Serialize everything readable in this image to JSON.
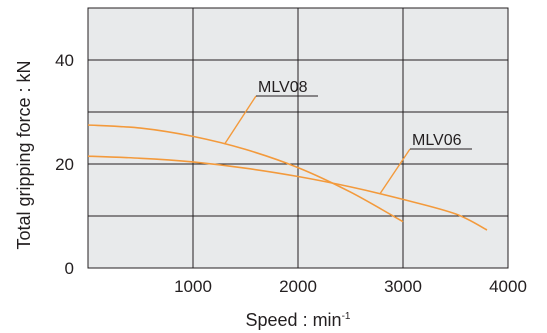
{
  "chart_data": {
    "type": "line",
    "xlabel": "Speed : min",
    "xlabel_superscript": "-1",
    "ylabel": "Total gripping force : kN",
    "xlim": [
      0,
      4000
    ],
    "ylim": [
      0,
      50
    ],
    "x_ticks": [
      1000,
      2000,
      3000,
      4000
    ],
    "x_tick_labels": [
      "1000",
      "2000",
      "3000",
      "4000"
    ],
    "y_ticks": [
      0,
      20,
      40
    ],
    "y_tick_labels": [
      "0",
      "20",
      "40"
    ],
    "grid": true,
    "plot_background": "#e8eaeb",
    "grid_color": "#231f20",
    "series": [
      {
        "name": "MLV08",
        "color": "#f39a3c",
        "x": [
          0,
          500,
          1000,
          1500,
          2000,
          2500,
          3000
        ],
        "y": [
          27.5,
          26.9,
          25.3,
          22.8,
          19.3,
          14.6,
          8.9
        ]
      },
      {
        "name": "MLV06",
        "color": "#f39a3c",
        "x": [
          0,
          500,
          1000,
          1500,
          2000,
          2500,
          3000,
          3500,
          3800
        ],
        "y": [
          21.5,
          21.1,
          20.4,
          19.2,
          17.6,
          15.6,
          13.2,
          10.4,
          7.3
        ]
      }
    ],
    "annotations": [
      {
        "label": "MLV08",
        "series": "MLV08",
        "point_x": 1300,
        "point_y": 23.5
      },
      {
        "label": "MLV06",
        "series": "MLV06",
        "point_x": 2780,
        "point_y": 13.6
      }
    ]
  }
}
